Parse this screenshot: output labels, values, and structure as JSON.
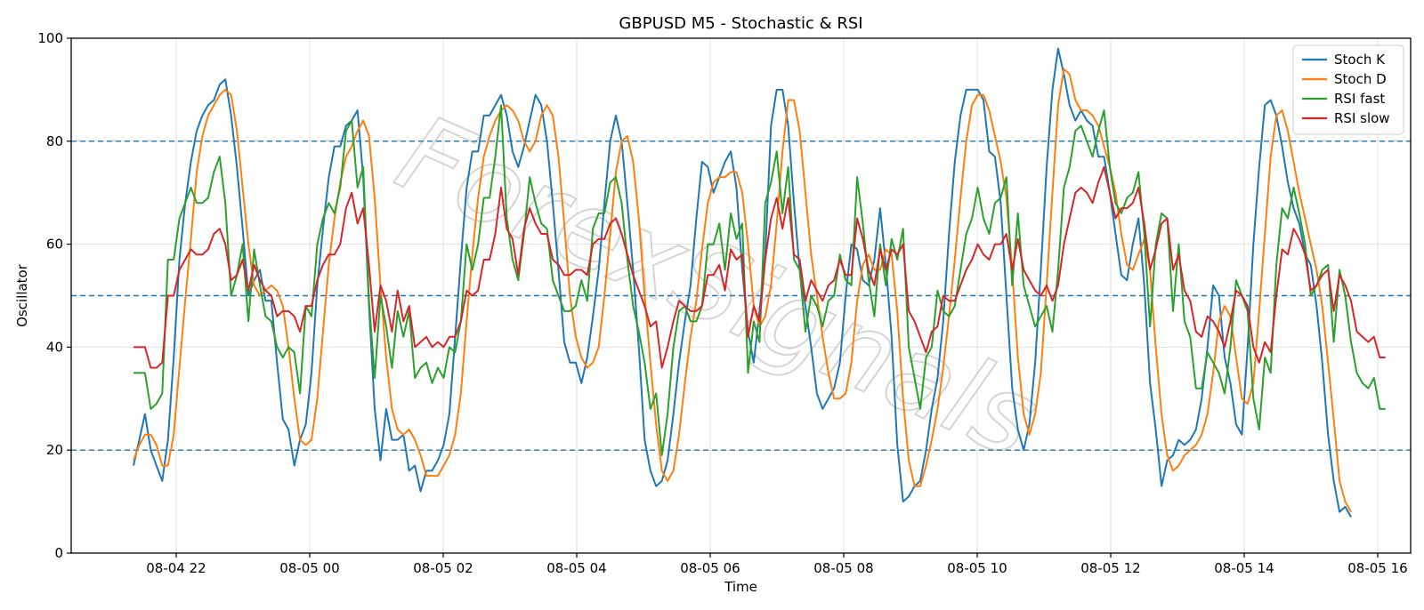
{
  "chart_data": {
    "type": "line",
    "title": "GBPUSD M5 - Stochastic & RSI",
    "xlabel": "Time",
    "ylabel": "Oscillator",
    "ylim": [
      0,
      100
    ],
    "yticks": [
      0,
      20,
      40,
      60,
      80,
      100
    ],
    "xticks": [
      "08-04 22",
      "08-05 00",
      "08-05 02",
      "08-05 04",
      "08-05 06",
      "08-05 08",
      "08-05 10",
      "08-05 12",
      "08-05 14",
      "08-05 16"
    ],
    "reference_lines": [
      20,
      50,
      80
    ],
    "grid": true,
    "legend_position": "top-right",
    "watermark": "ForexSignals",
    "series": [
      {
        "name": "Stoch K",
        "color": "#1f77b4",
        "values": [
          17,
          22,
          27,
          20,
          17,
          14,
          22,
          38,
          57,
          68,
          76,
          82,
          85,
          87,
          88,
          91,
          92,
          85,
          75,
          63,
          50,
          53,
          55,
          49,
          49,
          37,
          26,
          24,
          17,
          22,
          25,
          35,
          52,
          63,
          73,
          79,
          79,
          83,
          84,
          86,
          73,
          48,
          28,
          18,
          28,
          22,
          22,
          23,
          16,
          17,
          12,
          16,
          16,
          18,
          21,
          27,
          42,
          57,
          71,
          78,
          78,
          85,
          85,
          87,
          89,
          85,
          78,
          75,
          79,
          84,
          89,
          87,
          80,
          68,
          55,
          41,
          37,
          37,
          33,
          38,
          46,
          55,
          68,
          80,
          85,
          80,
          68,
          55,
          40,
          22,
          16,
          13,
          14,
          18,
          27,
          37,
          45,
          52,
          65,
          76,
          75,
          70,
          73,
          76,
          78,
          71,
          55,
          43,
          37,
          47,
          58,
          83,
          90,
          90,
          83,
          68,
          55,
          48,
          40,
          31,
          28,
          30,
          32,
          37,
          50,
          60,
          59,
          53,
          52,
          57,
          67,
          56,
          42,
          21,
          10,
          11,
          13,
          14,
          20,
          28,
          34,
          45,
          62,
          76,
          85,
          90,
          90,
          90,
          88,
          78,
          77,
          68,
          50,
          32,
          24,
          20,
          25,
          37,
          55,
          75,
          90,
          98,
          93,
          87,
          84,
          86,
          84,
          83,
          77,
          77,
          70,
          62,
          54,
          53,
          60,
          65,
          52,
          33,
          24,
          13,
          18,
          19,
          22,
          21,
          22,
          24,
          30,
          40,
          52,
          50,
          38,
          33,
          25,
          23,
          40,
          60,
          75,
          87,
          88,
          85,
          79,
          72,
          67,
          64,
          58,
          56,
          48,
          37,
          23,
          14,
          8,
          9,
          7
        ]
      },
      {
        "name": "Stoch D",
        "color": "#ff7f0e",
        "values": [
          18,
          21,
          23,
          23,
          21,
          17,
          17,
          23,
          36,
          49,
          61,
          74,
          81,
          85,
          87,
          89,
          90,
          89,
          82,
          71,
          60,
          52,
          50,
          51,
          52,
          51,
          48,
          40,
          30,
          22,
          21,
          22,
          30,
          43,
          56,
          65,
          72,
          77,
          79,
          82,
          84,
          81,
          69,
          52,
          38,
          28,
          24,
          23,
          24,
          22,
          19,
          15,
          15,
          15,
          17,
          19,
          23,
          31,
          45,
          58,
          69,
          77,
          81,
          84,
          86,
          87,
          86,
          84,
          80,
          78,
          80,
          85,
          87,
          85,
          77,
          64,
          50,
          42,
          38,
          36,
          37,
          40,
          50,
          62,
          74,
          80,
          81,
          76,
          65,
          50,
          37,
          25,
          16,
          14,
          16,
          23,
          33,
          42,
          49,
          59,
          68,
          72,
          73,
          73,
          74,
          74,
          70,
          60,
          48,
          44,
          46,
          52,
          64,
          78,
          88,
          88,
          82,
          70,
          58,
          50,
          42,
          35,
          30,
          30,
          31,
          37,
          49,
          56,
          58,
          55,
          55,
          59,
          58,
          47,
          30,
          18,
          13,
          13,
          17,
          22,
          28,
          36,
          46,
          57,
          69,
          80,
          87,
          89,
          89,
          86,
          81,
          76,
          69,
          55,
          38,
          27,
          23,
          27,
          35,
          52,
          70,
          87,
          94,
          93,
          88,
          86,
          86,
          85,
          83,
          79,
          75,
          70,
          62,
          56,
          55,
          58,
          61,
          55,
          40,
          27,
          19,
          16,
          17,
          19,
          20,
          21,
          23,
          27,
          35,
          45,
          48,
          46,
          38,
          30,
          29,
          33,
          47,
          62,
          77,
          85,
          86,
          82,
          76,
          70,
          65,
          60,
          55,
          48,
          37,
          26,
          14,
          10,
          8
        ]
      },
      {
        "name": "RSI fast",
        "color": "#2ca02c",
        "values": [
          35,
          35,
          35,
          28,
          29,
          31,
          57,
          57,
          65,
          68,
          71,
          68,
          68,
          69,
          74,
          77,
          68,
          50,
          54,
          60,
          45,
          59,
          52,
          46,
          45,
          40,
          38,
          40,
          39,
          31,
          48,
          46,
          60,
          65,
          68,
          66,
          71,
          82,
          84,
          71,
          75,
          49,
          34,
          50,
          44,
          36,
          47,
          42,
          47,
          34,
          36,
          37,
          33,
          36,
          34,
          40,
          39,
          45,
          60,
          55,
          60,
          69,
          69,
          77,
          87,
          65,
          57,
          53,
          62,
          73,
          68,
          64,
          63,
          53,
          50,
          47,
          47,
          48,
          53,
          49,
          63,
          66,
          66,
          72,
          73,
          68,
          57,
          48,
          43,
          37,
          28,
          31,
          19,
          27,
          40,
          47,
          48,
          45,
          45,
          48,
          60,
          60,
          64,
          55,
          66,
          61,
          64,
          35,
          45,
          41,
          68,
          72,
          78,
          66,
          75,
          57,
          55,
          43,
          50,
          48,
          44,
          49,
          50,
          58,
          53,
          52,
          73,
          64,
          53,
          46,
          60,
          52,
          61,
          57,
          63,
          40,
          34,
          28,
          38,
          40,
          51,
          47,
          46,
          48,
          55,
          62,
          65,
          71,
          65,
          62,
          68,
          69,
          73,
          52,
          66,
          52,
          48,
          44,
          46,
          48,
          43,
          55,
          71,
          75,
          82,
          83,
          80,
          77,
          82,
          86,
          75,
          68,
          66,
          69,
          70,
          74,
          62,
          44,
          60,
          66,
          65,
          47,
          60,
          45,
          42,
          32,
          32,
          39,
          37,
          35,
          31,
          40,
          53,
          50,
          47,
          30,
          24,
          38,
          35,
          56,
          67,
          65,
          71,
          66,
          60,
          50,
          52,
          55,
          56,
          41,
          55,
          50,
          41,
          35,
          33,
          32,
          34,
          28,
          28
        ]
      },
      {
        "name": "RSI slow",
        "color": "#d62728",
        "values": [
          40,
          40,
          40,
          36,
          36,
          37,
          50,
          50,
          55,
          57,
          59,
          58,
          58,
          59,
          62,
          63,
          60,
          53,
          54,
          57,
          51,
          56,
          53,
          51,
          50,
          46,
          47,
          47,
          46,
          43,
          48,
          48,
          53,
          56,
          58,
          58,
          60,
          67,
          70,
          64,
          67,
          56,
          43,
          52,
          49,
          43,
          51,
          45,
          48,
          40,
          41,
          42,
          40,
          41,
          40,
          42,
          42,
          45,
          51,
          50,
          51,
          57,
          57,
          62,
          71,
          63,
          61,
          54,
          63,
          67,
          64,
          62,
          62,
          57,
          56,
          54,
          54,
          55,
          55,
          54,
          60,
          61,
          61,
          64,
          65,
          62,
          58,
          54,
          51,
          48,
          44,
          45,
          36,
          40,
          45,
          49,
          48,
          47,
          47,
          48,
          54,
          54,
          56,
          51,
          59,
          57,
          58,
          42,
          48,
          45,
          57,
          65,
          69,
          63,
          69,
          58,
          57,
          49,
          53,
          51,
          49,
          52,
          53,
          57,
          54,
          54,
          65,
          61,
          55,
          52,
          59,
          55,
          59,
          58,
          60,
          47,
          45,
          42,
          39,
          43,
          44,
          50,
          49,
          49,
          52,
          55,
          57,
          60,
          58,
          57,
          60,
          60,
          62,
          55,
          61,
          55,
          53,
          51,
          50,
          52,
          49,
          52,
          60,
          65,
          70,
          71,
          70,
          68,
          72,
          75,
          70,
          65,
          67,
          67,
          68,
          71,
          64,
          55,
          59,
          64,
          65,
          55,
          58,
          51,
          49,
          43,
          42,
          46,
          45,
          43,
          40,
          45,
          51,
          50,
          48,
          40,
          37,
          41,
          39,
          50,
          59,
          58,
          63,
          61,
          58,
          51,
          52,
          54,
          55,
          47,
          54,
          52,
          49,
          43,
          42,
          41,
          42,
          38,
          38
        ]
      }
    ]
  }
}
